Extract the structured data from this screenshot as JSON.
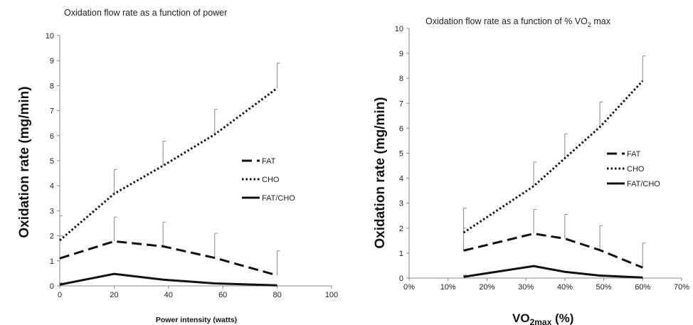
{
  "chart_data": [
    {
      "type": "line",
      "title": "Oxidation flow rate as a function of power",
      "xlabel": "Power intensity (watts)",
      "ylabel": "Oxidation rate (mg/min)",
      "xlim": [
        0,
        100
      ],
      "ylim": [
        0,
        10
      ],
      "xticks": [
        0,
        20,
        40,
        60,
        80,
        100
      ],
      "yticks": [
        0,
        1,
        2,
        3,
        4,
        5,
        6,
        7,
        8,
        9,
        10
      ],
      "x": [
        0,
        20,
        38,
        57,
        80
      ],
      "grid": false,
      "legend_position": "right",
      "series": [
        {
          "name": "FAT",
          "style": "dashed",
          "values": [
            1.1,
            1.78,
            1.58,
            1.12,
            0.42
          ],
          "err_upper": [
            2.8,
            2.75,
            2.55,
            2.1,
            1.4
          ]
        },
        {
          "name": "CHO",
          "style": "dotted",
          "values": [
            1.82,
            3.68,
            4.8,
            6.05,
            7.9
          ],
          "err_upper": [
            2.0,
            4.65,
            5.78,
            7.05,
            8.9
          ]
        },
        {
          "name": "FAT/CHO",
          "style": "solid",
          "values": [
            0.05,
            0.48,
            0.25,
            0.1,
            0.02
          ],
          "err_upper": [
            0.12,
            null,
            null,
            null,
            null
          ]
        }
      ]
    },
    {
      "type": "line",
      "title": "Oxidation flow rate as a function of % VO",
      "title_sub": "2",
      "title_tail": " max",
      "xlabel": "VO",
      "xlabel_sub": "2max",
      "xlabel_tail": " (%)",
      "ylabel": "Oxidation rate (mg/min)",
      "xlim": [
        0,
        70
      ],
      "ylim": [
        0,
        10
      ],
      "xticks": [
        "0%",
        "10%",
        "20%",
        "30%",
        "40%",
        "50%",
        "60%",
        "70%"
      ],
      "yticks": [
        0,
        1,
        2,
        3,
        4,
        5,
        6,
        7,
        8,
        9,
        10
      ],
      "x": [
        14,
        32,
        40,
        49,
        60
      ],
      "grid": false,
      "legend_position": "right",
      "series": [
        {
          "name": "FAT",
          "style": "dashed",
          "values": [
            1.1,
            1.78,
            1.58,
            1.12,
            0.42
          ],
          "err_upper": [
            2.8,
            2.75,
            2.55,
            2.1,
            1.4
          ]
        },
        {
          "name": "CHO",
          "style": "dotted",
          "values": [
            1.82,
            3.68,
            4.8,
            6.05,
            7.9
          ],
          "err_upper": [
            2.0,
            4.65,
            5.78,
            7.05,
            8.9
          ]
        },
        {
          "name": "FAT/CHO",
          "style": "solid",
          "values": [
            0.05,
            0.48,
            0.25,
            0.1,
            0.02
          ],
          "err_upper": [
            0.12,
            null,
            null,
            null,
            null
          ]
        }
      ]
    }
  ]
}
